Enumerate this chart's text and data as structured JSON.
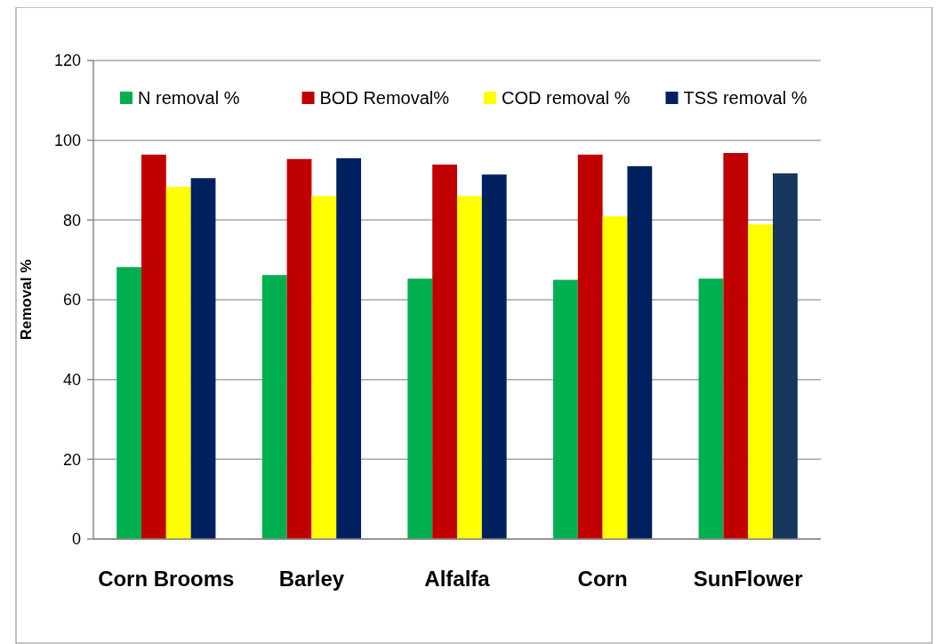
{
  "chart_data": {
    "type": "bar",
    "ylabel": "Removal %",
    "categories": [
      "Corn Brooms",
      "Barley",
      "Alfalfa",
      "Corn",
      "SunFlower"
    ],
    "series": [
      {
        "name": "N removal %",
        "color": "#00b050",
        "values": [
          68.2,
          66.2,
          65.3,
          65.0,
          65.3
        ]
      },
      {
        "name": "BOD Removal%",
        "color": "#c00000",
        "values": [
          96.4,
          95.3,
          93.9,
          96.4,
          96.8
        ]
      },
      {
        "name": "COD removal %",
        "color": "#ffff00",
        "values": [
          88.3,
          86.0,
          86.0,
          80.9,
          78.9
        ]
      },
      {
        "name": "TSS removal %",
        "color": "#002060",
        "colors": [
          "#002060",
          "#002060",
          "#002060",
          "#002060",
          "#17375e"
        ],
        "values": [
          90.5,
          95.5,
          91.4,
          93.5,
          91.7
        ]
      }
    ],
    "ylim": [
      0,
      120
    ],
    "yticks": [
      0,
      20,
      40,
      60,
      80,
      100,
      120
    ],
    "grid": "y",
    "legend": "top"
  }
}
